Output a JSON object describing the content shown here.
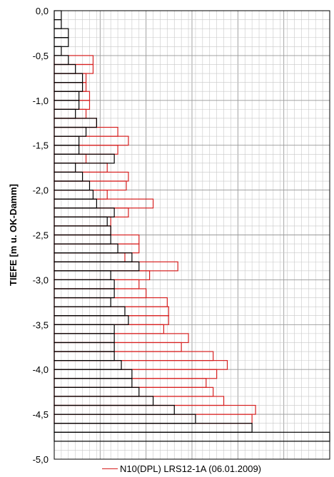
{
  "chart_data": {
    "type": "bar",
    "orientation": "horizontal",
    "ylabel": "TIEFE [m u. OK-Damm]",
    "xlabel": "",
    "ylim": [
      -5.0,
      0.0
    ],
    "y_tick_labels": [
      "0,0",
      "-0,5",
      "-1,0",
      "-1,5",
      "-2,0",
      "-2,5",
      "-3,0",
      "-3,5",
      "-4,0",
      "-4,5",
      "-5,0"
    ],
    "y_tick_values": [
      0.0,
      -0.5,
      -1.0,
      -1.5,
      -2.0,
      -2.5,
      -3.0,
      -3.5,
      -4.0,
      -4.5,
      -5.0
    ],
    "xlim": [
      0,
      39
    ],
    "x_tick_labels": [],
    "grid": true,
    "colors": {
      "series_a": "#000000",
      "series_b": "#d62020",
      "grid": "#c8c8c8"
    },
    "depth_step": 0.1,
    "series": [
      {
        "name": "N10(DPL) LRS12-1A (06.01.2009)",
        "color": "#d62020",
        "depth_from": [
          -0.5,
          -0.6,
          -0.7,
          -0.8,
          -0.9,
          -1.0,
          -1.1,
          -1.2,
          -1.3,
          -1.4,
          -1.5,
          -1.6,
          -1.7,
          -1.8,
          -1.9,
          -2.0,
          -2.1,
          -2.2,
          -2.3,
          -2.4,
          -2.5,
          -2.6,
          -2.7,
          -2.8,
          -2.9,
          -3.0,
          -3.1,
          -3.2,
          -3.3,
          -3.4,
          -3.5,
          -3.6,
          -3.7,
          -3.8,
          -3.9,
          -4.0,
          -4.1,
          -4.2,
          -4.3,
          -4.4,
          -4.5
        ],
        "values": [
          5.5,
          5.5,
          4.5,
          4.5,
          5,
          5,
          4.5,
          6,
          9,
          10.5,
          9,
          4.5,
          7.5,
          10.5,
          10.2,
          7.5,
          14,
          10.5,
          8,
          8,
          12,
          12,
          10,
          17.5,
          13.5,
          12,
          13,
          16,
          16.2,
          16.2,
          15.5,
          19,
          18,
          22.5,
          24.5,
          23,
          21.5,
          22.5,
          24,
          28.5,
          28
        ]
      },
      {
        "name": "",
        "color": "#000000",
        "depth_from": [
          0.0,
          -0.1,
          -0.2,
          -0.3,
          -0.4,
          -0.5,
          -0.6,
          -0.7,
          -0.8,
          -0.9,
          -1.0,
          -1.1,
          -1.2,
          -1.3,
          -1.4,
          -1.5,
          -1.6,
          -1.7,
          -1.8,
          -1.9,
          -2.0,
          -2.1,
          -2.2,
          -2.3,
          -2.4,
          -2.5,
          -2.6,
          -2.7,
          -2.8,
          -2.9,
          -3.0,
          -3.1,
          -3.2,
          -3.3,
          -3.4,
          -3.5,
          -3.6,
          -3.7,
          -3.8,
          -3.9,
          -4.0,
          -4.1,
          -4.2,
          -4.3,
          -4.4,
          -4.5,
          -4.6,
          -4.7
        ],
        "values": [
          1,
          1,
          2,
          2,
          1,
          2,
          3,
          4,
          4,
          3.5,
          3.5,
          3,
          6,
          4.5,
          3.5,
          3.5,
          8.5,
          3,
          4,
          5,
          5.5,
          6,
          8.5,
          7.5,
          8,
          8,
          9,
          11,
          12,
          8,
          8.5,
          8.5,
          8,
          10,
          10.5,
          8.5,
          8.5,
          8.5,
          8.5,
          9.5,
          11,
          11,
          12,
          14,
          17,
          20,
          28,
          39
        ]
      }
    ]
  }
}
